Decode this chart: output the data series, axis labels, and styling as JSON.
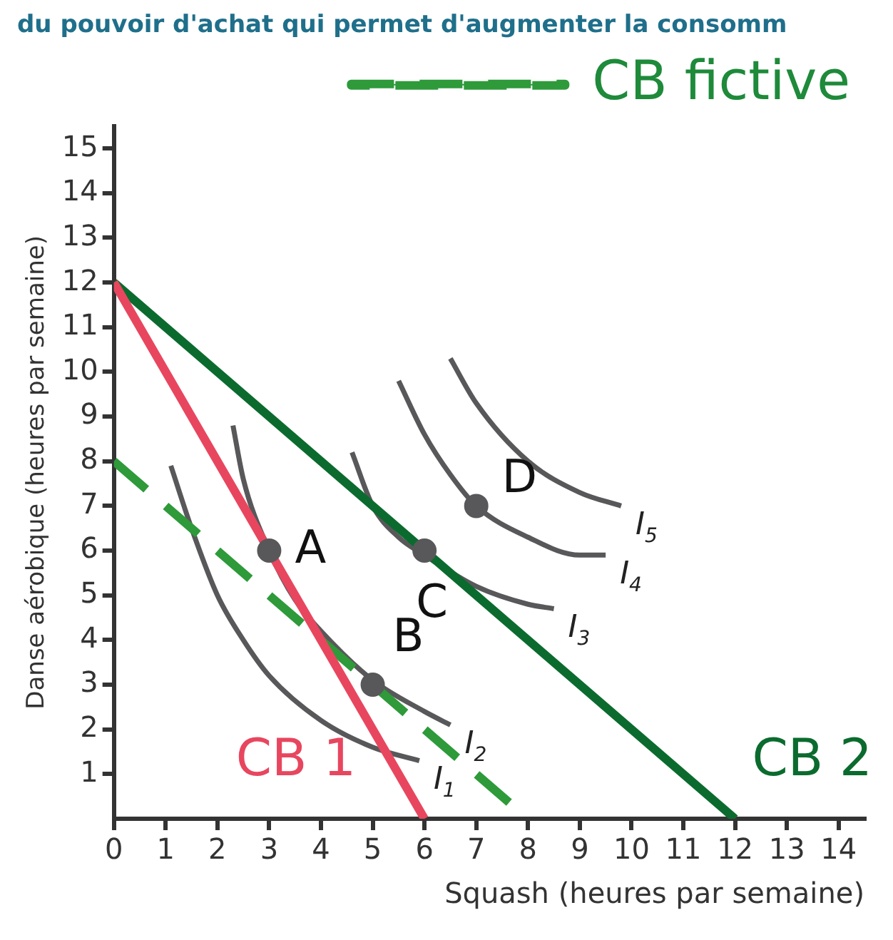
{
  "chart_data": {
    "type": "line",
    "title": "du pouvoir d'achat qui permet d'augmenter la consomm",
    "xlabel": "Squash (heures par semaine)",
    "ylabel": "Danse aérobique (heures par semaine)",
    "xlim": [
      0,
      14.5
    ],
    "xticks": [
      0,
      1,
      2,
      3,
      4,
      5,
      6,
      7,
      8,
      9,
      10,
      11,
      12,
      13,
      14
    ],
    "ylim": [
      0,
      15.5
    ],
    "yticks": [
      1,
      2,
      3,
      4,
      5,
      6,
      7,
      8,
      9,
      10,
      11,
      12,
      13,
      14,
      15
    ],
    "grid": false,
    "legend": "top right",
    "marker": "none",
    "series": [
      {
        "name": "CB 1",
        "color": "#e8465f",
        "x": [
          0,
          6
        ],
        "values": [
          12,
          0
        ]
      },
      {
        "name": "CB 2",
        "color": "#0b6b2e",
        "x": [
          0,
          12
        ],
        "values": [
          12,
          0
        ]
      },
      {
        "name": "CB fictive",
        "color": "#2e9a3a",
        "line_style": "dashed",
        "x": [
          0,
          8
        ],
        "values": [
          8,
          0
        ]
      },
      {
        "name": "I$_{1}$",
        "color": "#58585a",
        "x": [
          1.1,
          1.5,
          2,
          2.5,
          3,
          4,
          5,
          5.9
        ],
        "values": [
          7.9,
          6.5,
          5,
          4,
          3.2,
          2.2,
          1.6,
          1.3
        ]
      },
      {
        "name": "I$_{2}$",
        "color": "#58585a",
        "x": [
          2.3,
          2.5,
          3,
          3.5,
          4,
          5,
          6,
          6.5
        ],
        "values": [
          8.8,
          7.6,
          6,
          4.9,
          4.2,
          3.1,
          2.4,
          2.1
        ]
      },
      {
        "name": "I$_{3}$",
        "color": "#58585a",
        "x": [
          4.6,
          5,
          5.5,
          6,
          7,
          8,
          8.5
        ],
        "values": [
          8.2,
          7,
          6.3,
          5.9,
          5.2,
          4.8,
          4.7
        ]
      },
      {
        "name": "I$_{4}$",
        "color": "#58585a",
        "x": [
          5.5,
          6,
          6.5,
          7,
          8,
          9,
          9.5
        ],
        "values": [
          9.8,
          8.6,
          7.7,
          7,
          6.3,
          5.9,
          5.9
        ]
      },
      {
        "name": "I$_{5}$",
        "color": "#58585a",
        "x": [
          6.5,
          7,
          8,
          9,
          9.8
        ],
        "values": [
          10.3,
          9.3,
          8,
          7.3,
          7
        ]
      },
      {
        "type": "scatter",
        "color": "#58585a",
        "marker": "circle",
        "x": [
          3,
          5,
          6,
          7
        ],
        "values": [
          6,
          3,
          6,
          7
        ]
      }
    ],
    "annotations": [
      {
        "text": "A",
        "x": 3,
        "y": 6
      },
      {
        "text": "B",
        "x": 5,
        "y": 3
      },
      {
        "text": "C",
        "x": 6,
        "y": 6
      },
      {
        "text": "D",
        "x": 7,
        "y": 7
      }
    ]
  }
}
